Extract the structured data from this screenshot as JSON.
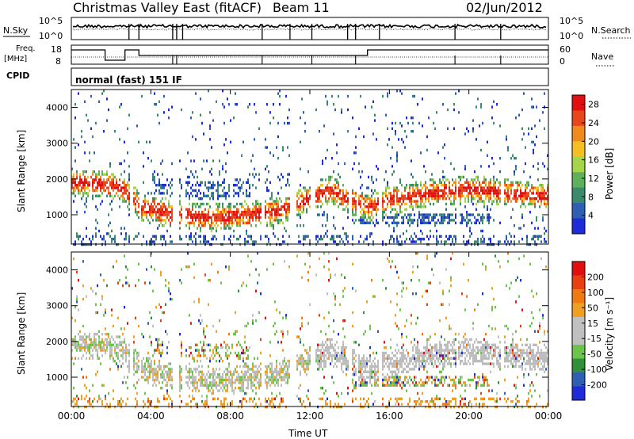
{
  "header": {
    "station": "Christmas Valley East (fitACF)",
    "beam": "Beam 11",
    "date": "02/Jun/2012"
  },
  "strips": {
    "noise": {
      "left_label": "N.Sky",
      "right_label": "N.Search",
      "left_ticks": [
        "10^5",
        "10^0"
      ],
      "right_ticks": [
        "10^5",
        "10^0"
      ]
    },
    "freq": {
      "left_label_1": "Freq.",
      "left_label_2": "[MHz]",
      "right_label": "Nave",
      "left_ticks": [
        "18",
        "8"
      ],
      "right_ticks": [
        "60",
        "0"
      ]
    },
    "cpid": {
      "label": "CPID",
      "text": "normal (fast) 151 IF"
    }
  },
  "colors": {
    "power_scale": [
      "#1d2bd8",
      "#2e5fb2",
      "#3a8b6e",
      "#5fb05a",
      "#a6d44a",
      "#f4c021",
      "#f08a1c",
      "#e8461b",
      "#e10f0f"
    ],
    "velocity_scale": [
      "#1d2bd8",
      "#2e5fb2",
      "#2f8f3a",
      "#6cc44a",
      "#c0c0c0",
      "#c0c0c0",
      "#f0a020",
      "#f07a10",
      "#e84010",
      "#e10f0f"
    ],
    "gray": "#bcbcbc"
  },
  "chart_data": [
    {
      "type": "heatmap",
      "name": "power",
      "ylabel": "Slant Range [km]",
      "xlabel": "Time UT",
      "x_ticks": [
        "00:00",
        "04:00",
        "08:00",
        "12:00",
        "16:00",
        "20:00",
        "00:00"
      ],
      "y_ticks": [
        "1000",
        "2000",
        "3000",
        "4000"
      ],
      "xlim_hours": [
        0,
        24
      ],
      "ylim_km": [
        180,
        4500
      ],
      "colorbar": {
        "label": "Power [dB]",
        "ticks": [
          "4",
          "8",
          "12",
          "16",
          "20",
          "24",
          "28"
        ],
        "range": [
          0,
          30
        ]
      },
      "main_echo_band_km": [
        {
          "t": 0,
          "r": 1950
        },
        {
          "t": 1.5,
          "r": 1900
        },
        {
          "t": 2.5,
          "r": 1800
        },
        {
          "t": 3.5,
          "r": 1250
        },
        {
          "t": 5,
          "r": 1050
        },
        {
          "t": 7,
          "r": 950
        },
        {
          "t": 9,
          "r": 1050
        },
        {
          "t": 10.5,
          "r": 1150
        },
        {
          "t": 13,
          "r": 1750
        },
        {
          "t": 14,
          "r": 1450
        },
        {
          "t": 15,
          "r": 1250
        },
        {
          "t": 16,
          "r": 1450
        },
        {
          "t": 18,
          "r": 1650
        },
        {
          "t": 20,
          "r": 1750
        },
        {
          "t": 22,
          "r": 1650
        },
        {
          "t": 24,
          "r": 1550
        }
      ]
    },
    {
      "type": "heatmap",
      "name": "velocity",
      "ylabel": "Slant Range [km]",
      "xlabel": "Time UT",
      "x_ticks": [
        "00:00",
        "04:00",
        "08:00",
        "12:00",
        "16:00",
        "20:00",
        "00:00"
      ],
      "y_ticks": [
        "1000",
        "2000",
        "3000",
        "4000"
      ],
      "xlim_hours": [
        0,
        24
      ],
      "ylim_km": [
        180,
        4500
      ],
      "colorbar": {
        "label": "Velocity [m s⁻¹]",
        "ticks": [
          "200",
          "100",
          "50",
          "15",
          "-15",
          "-50",
          "-100",
          "-200"
        ],
        "range": [
          -250,
          250
        ]
      }
    }
  ]
}
